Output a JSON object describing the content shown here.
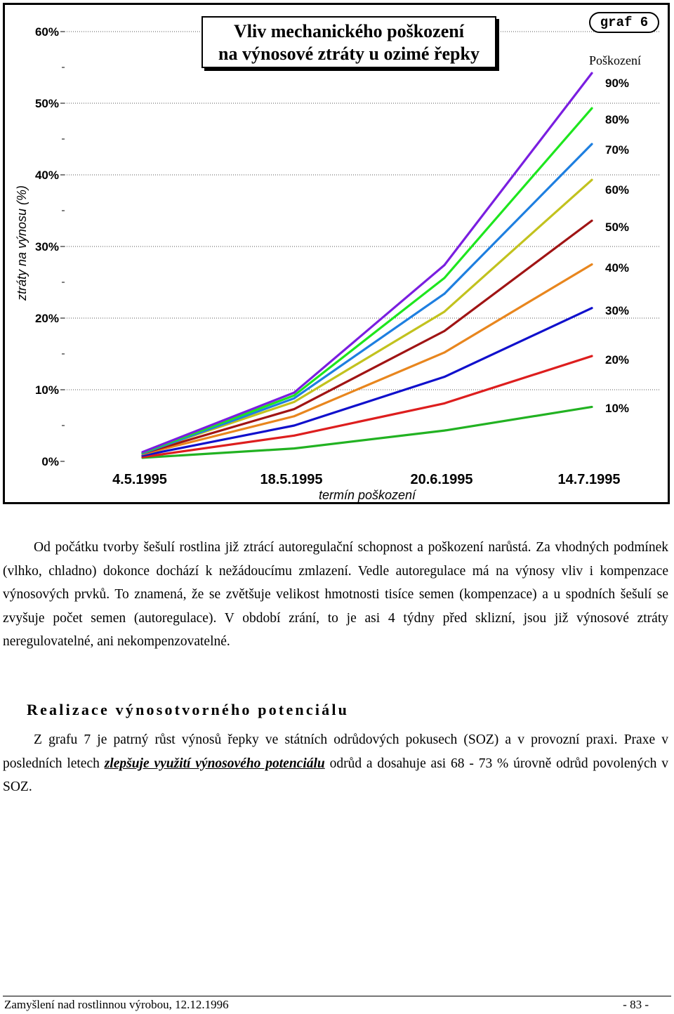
{
  "chart_label": "graf 6",
  "chart_title_line1": "Vliv mechanického poškození",
  "chart_title_line2": "na výnosové ztráty u ozimé řepky",
  "chart_data": {
    "type": "line",
    "title": "Vliv mechanického poškození na výnosové ztráty u ozimé řepky",
    "xlabel": "termín poškození",
    "ylabel": "ztráty na výnosu (%)",
    "legend_title": "Poškození",
    "categories": [
      "4.5.1995",
      "18.5.1995",
      "20.6.1995",
      "14.7.1995"
    ],
    "y_ticks": [
      "0%",
      "10%",
      "20%",
      "30%",
      "40%",
      "50%",
      "60%"
    ],
    "ylim": [
      0,
      60
    ],
    "grid": true,
    "series": [
      {
        "name": "10%",
        "color": "#22b222",
        "values": [
          0.5,
          1.8,
          4.3,
          7.6
        ]
      },
      {
        "name": "20%",
        "color": "#dd1e1e",
        "values": [
          0.6,
          3.6,
          8.1,
          14.7
        ]
      },
      {
        "name": "30%",
        "color": "#1010cc",
        "values": [
          0.8,
          5.0,
          11.8,
          21.4
        ]
      },
      {
        "name": "40%",
        "color": "#e8861e",
        "values": [
          1.0,
          6.3,
          15.2,
          27.5
        ]
      },
      {
        "name": "50%",
        "color": "#a01414",
        "values": [
          1.1,
          7.3,
          18.2,
          33.6
        ]
      },
      {
        "name": "60%",
        "color": "#c2c21e",
        "values": [
          1.2,
          8.3,
          20.9,
          39.3
        ]
      },
      {
        "name": "70%",
        "color": "#1e7fe0",
        "values": [
          1.1,
          8.8,
          23.4,
          44.3
        ]
      },
      {
        "name": "80%",
        "color": "#1ee61e",
        "values": [
          1.2,
          9.2,
          25.6,
          49.3
        ]
      },
      {
        "name": "90%",
        "color": "#7a1ee0",
        "values": [
          1.3,
          9.6,
          27.4,
          54.2
        ]
      }
    ]
  },
  "paragraph1": "Od počátku tvorby šešulí rostlina již ztrácí autoregulační schopnost a poškození narůstá. Za vhodných podmínek (vlhko, chladno) dokonce dochází k nežádoucímu zmlazení. Vedle autoregulace má na výnosy vliv i kompenzace výnosových prvků. To znamená, že se zvětšuje velikost hmotnosti tisíce semen (kompenzace) a u spodních šešulí se zvyšuje počet semen (autoregulace). V období zrání, to je asi 4 týdny před sklizní, jsou již výnosové ztráty neregulovatelné, ani nekompenzovatelné.",
  "section_heading": "Realizace výnosotvorného potenciálu",
  "paragraph2_part1": "Z grafu 7 je patrný růst výnosů řepky ve státních odrůdových pokusech (SOZ) a v provozní praxi. Praxe v posledních letech ",
  "paragraph2_emphasis": "zlepšuje využití výnosového potenciálu",
  "paragraph2_part2": " odrůd a dosahuje asi 68 - 73 % úrovně odrůd povolených v SOZ.",
  "footer_left": "Zamyšlení nad rostlinnou výrobou, 12.12.1996",
  "footer_right": "- 83 -"
}
